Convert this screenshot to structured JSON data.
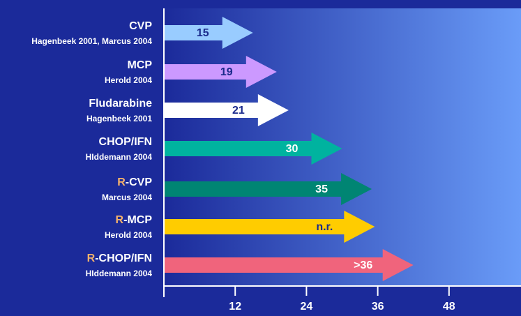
{
  "chart_data": {
    "type": "arrow",
    "labels": [
      {
        "name": "CVP",
        "source": "Hagenbeek 2001, Marcus 2004"
      },
      {
        "name": "MCP",
        "source": "Herold 2004"
      },
      {
        "name": "Fludarabine",
        "source": "Hagenbeek 2001"
      },
      {
        "name": "CHOP/IFN",
        "source": "HIddemann 2004"
      },
      {
        "prefix": "R",
        "name": "-CVP",
        "source": "Marcus 2004"
      },
      {
        "prefix": "R",
        "name": "-MCP",
        "source": "Herold 2004"
      },
      {
        "prefix": "R",
        "name": "-CHOP/IFN",
        "source": "HIddemann 2004"
      }
    ],
    "values": [
      15,
      19,
      21,
      30,
      35,
      35.5,
      42
    ],
    "value_labels": [
      "15",
      "19",
      "21",
      "30",
      "35",
      "n.r.",
      ">36"
    ],
    "colors": [
      "#99ccff",
      "#cc99ff",
      "#ffffff",
      "#00b39f",
      "#008573",
      "#ffcc00",
      "#f0647c"
    ],
    "label_colors": [
      "#1a2a8c",
      "#1a2a8c",
      "#1a2a8c",
      "#ffffff",
      "#ffffff",
      "#1a2a8c",
      "#ffffff"
    ],
    "prefix_color": "#f5b26b",
    "xlim": [
      0,
      60
    ],
    "xticks": [
      12,
      24,
      36,
      48
    ]
  }
}
